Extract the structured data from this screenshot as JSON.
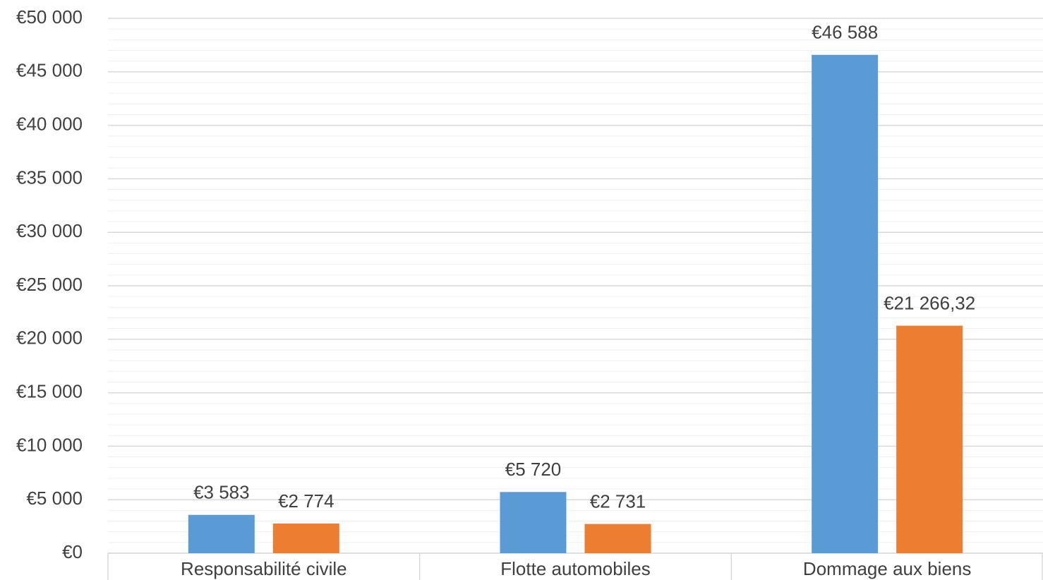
{
  "chart_data": {
    "type": "bar",
    "categories": [
      "Responsabilité civile",
      "Flotte automobiles",
      "Dommage aux biens"
    ],
    "series": [
      {
        "color": "#5b9bd5",
        "values": [
          3583,
          5720,
          46588
        ],
        "value_labels": [
          "€3 583",
          "€5 720",
          "€46 588"
        ]
      },
      {
        "color": "#ed7d31",
        "values": [
          2774,
          2731,
          21266.32
        ],
        "value_labels": [
          "€2 774",
          "€2 731",
          "€21 266,32"
        ]
      }
    ],
    "ylim": [
      0,
      50000
    ],
    "yticks": [
      {
        "value": 0,
        "label": "€0"
      },
      {
        "value": 5000,
        "label": "€5 000"
      },
      {
        "value": 10000,
        "label": "€10 000"
      },
      {
        "value": 15000,
        "label": "€15 000"
      },
      {
        "value": 20000,
        "label": "€20 000"
      },
      {
        "value": 25000,
        "label": "€25 000"
      },
      {
        "value": 30000,
        "label": "€30 000"
      },
      {
        "value": 35000,
        "label": "€35 000"
      },
      {
        "value": 40000,
        "label": "€40 000"
      },
      {
        "value": 45000,
        "label": "€45 000"
      },
      {
        "value": 50000,
        "label": "€50 000"
      }
    ],
    "minor_yticks": [
      1000,
      2000,
      3000,
      4000,
      6000,
      7000,
      8000,
      9000,
      11000,
      12000,
      13000,
      14000,
      16000,
      17000,
      18000,
      19000,
      21000,
      22000,
      23000,
      24000,
      26000,
      27000,
      28000,
      29000,
      31000,
      32000,
      33000,
      34000,
      36000,
      37000,
      38000,
      39000,
      41000,
      42000,
      43000,
      44000,
      46000,
      47000,
      48000,
      49000
    ],
    "grid": true
  }
}
